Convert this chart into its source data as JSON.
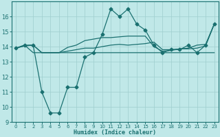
{
  "xlabel": "Humidex (Indice chaleur)",
  "bg_color": "#c0e8e8",
  "line_color": "#1a7070",
  "xlim": [
    -0.5,
    23.5
  ],
  "ylim": [
    9,
    17
  ],
  "x_ticks": [
    0,
    1,
    2,
    3,
    4,
    5,
    6,
    7,
    8,
    9,
    10,
    11,
    12,
    13,
    14,
    15,
    16,
    17,
    18,
    19,
    20,
    21,
    22,
    23
  ],
  "y_ticks": [
    9,
    10,
    11,
    12,
    13,
    14,
    15,
    16
  ],
  "series": [
    {
      "x": [
        0,
        1,
        2,
        3,
        4,
        5,
        6,
        7,
        8,
        9,
        10,
        11,
        12,
        13,
        14,
        15,
        16,
        17,
        18,
        19,
        20,
        21,
        22,
        23
      ],
      "y": [
        13.9,
        14.1,
        13.6,
        13.6,
        13.6,
        13.6,
        13.6,
        13.6,
        13.6,
        13.6,
        13.6,
        13.6,
        13.6,
        13.6,
        13.6,
        13.6,
        13.6,
        13.6,
        13.6,
        13.6,
        13.6,
        13.6,
        13.6,
        13.6
      ],
      "marker": false,
      "lw": 0.9
    },
    {
      "x": [
        0,
        1,
        2,
        3,
        4,
        5,
        6,
        7,
        8,
        9,
        10,
        11,
        12,
        13,
        14,
        15,
        16,
        17,
        18,
        19,
        20,
        21,
        22,
        23
      ],
      "y": [
        13.9,
        14.05,
        14.1,
        13.6,
        13.6,
        13.6,
        13.7,
        13.8,
        13.9,
        13.9,
        14.0,
        14.1,
        14.15,
        14.1,
        14.15,
        14.2,
        14.3,
        13.8,
        13.8,
        13.85,
        13.85,
        13.9,
        14.05,
        15.5
      ],
      "marker": false,
      "lw": 0.9
    },
    {
      "x": [
        0,
        1,
        2,
        3,
        4,
        5,
        6,
        7,
        8,
        9,
        10,
        11,
        12,
        13,
        14,
        15,
        16,
        17,
        18,
        19,
        20,
        21,
        22,
        23
      ],
      "y": [
        13.9,
        14.05,
        14.1,
        13.6,
        13.6,
        13.6,
        13.95,
        14.1,
        14.4,
        14.5,
        14.6,
        14.6,
        14.65,
        14.7,
        14.7,
        14.7,
        14.0,
        13.7,
        13.75,
        13.85,
        13.9,
        14.1,
        14.15,
        15.5
      ],
      "marker": false,
      "lw": 0.9
    },
    {
      "x": [
        0,
        1,
        2,
        3,
        4,
        5,
        6,
        7,
        8,
        9,
        10,
        11,
        12,
        13,
        14,
        15,
        16,
        17,
        18,
        19,
        20,
        21,
        22,
        23
      ],
      "y": [
        13.9,
        14.1,
        14.1,
        11.0,
        9.6,
        9.6,
        11.3,
        11.3,
        13.3,
        13.6,
        14.8,
        16.5,
        16.0,
        16.5,
        15.5,
        15.1,
        14.1,
        13.6,
        13.8,
        13.8,
        14.1,
        13.6,
        14.1,
        15.5
      ],
      "marker": true,
      "lw": 0.9
    }
  ]
}
